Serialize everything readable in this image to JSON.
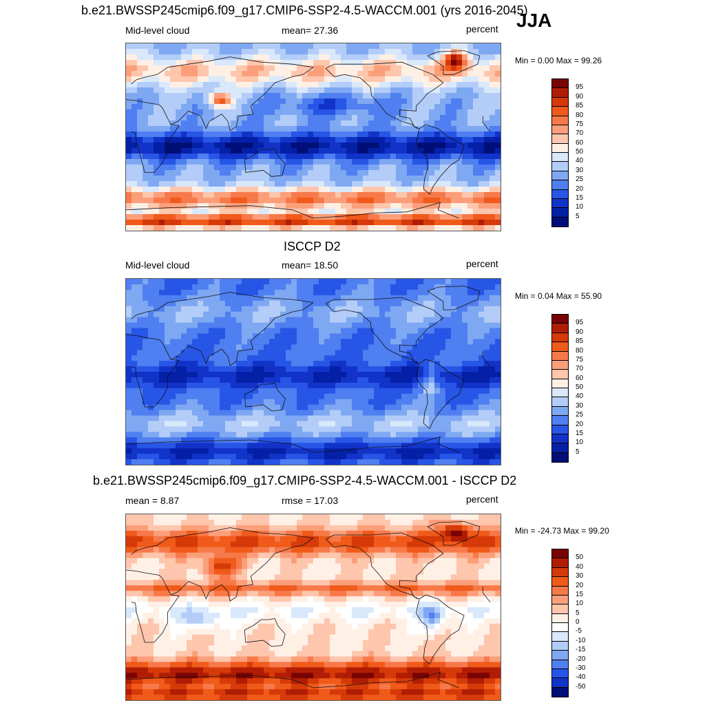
{
  "season": "JJA",
  "panels": [
    {
      "title": "b.e21.BWSSP245cmip6.f09_g17.CMIP6-SSP2-4.5-WACCM.001 (yrs 2016-2045)",
      "left": "Mid-level cloud",
      "center": "mean=  27.36",
      "right": "percent",
      "minmax": "Min =   0.00 Max =  99.26",
      "colorbar_labels": [
        "95",
        "90",
        "85",
        "80",
        "75",
        "70",
        "60",
        "50",
        "40",
        "30",
        "25",
        "20",
        "15",
        "10",
        "5"
      ],
      "colorbar_colors": [
        "#7a0403",
        "#b01d04",
        "#d63a08",
        "#f05a1a",
        "#f7794a",
        "#fb9f7a",
        "#fdc6ad",
        "#fff0e6",
        "#d9e8fb",
        "#b3cdf8",
        "#7fa8f2",
        "#4f7ff0",
        "#2755e6",
        "#1233c8",
        "#0420a6",
        "#000e78"
      ],
      "field": "model"
    },
    {
      "title": "ISCCP D2",
      "left": "Mid-level cloud",
      "center": "mean=  18.50",
      "right": "percent",
      "minmax": "Min =   0.04 Max =  55.90",
      "colorbar_labels": [
        "95",
        "90",
        "85",
        "80",
        "75",
        "70",
        "60",
        "50",
        "40",
        "30",
        "25",
        "20",
        "15",
        "10",
        "5"
      ],
      "colorbar_colors": [
        "#7a0403",
        "#b01d04",
        "#d63a08",
        "#f05a1a",
        "#f7794a",
        "#fb9f7a",
        "#fdc6ad",
        "#fff0e6",
        "#d9e8fb",
        "#b3cdf8",
        "#7fa8f2",
        "#4f7ff0",
        "#2755e6",
        "#1233c8",
        "#0420a6",
        "#000e78"
      ],
      "field": "obs"
    },
    {
      "title": "b.e21.BWSSP245cmip6.f09_g17.CMIP6-SSP2-4.5-WACCM.001 - ISCCP D2",
      "left": "mean =   8.87",
      "center": "rmse =  17.03",
      "right": "percent",
      "minmax": "Min = -24.73 Max =  99.20",
      "colorbar_labels": [
        "50",
        "40",
        "30",
        "20",
        "15",
        "10",
        "5",
        "0",
        "-5",
        "-10",
        "-15",
        "-20",
        "-30",
        "-40",
        "-50"
      ],
      "colorbar_colors": [
        "#7a0403",
        "#b01d04",
        "#d63a08",
        "#f05a1a",
        "#f7794a",
        "#fb9f7a",
        "#fdc6ad",
        "#fff0e6",
        "#ffffff",
        "#d9e8fb",
        "#b3cdf8",
        "#7fa8f2",
        "#4f7ff0",
        "#2755e6",
        "#1233c8",
        "#000e78"
      ],
      "field": "diff"
    }
  ]
}
